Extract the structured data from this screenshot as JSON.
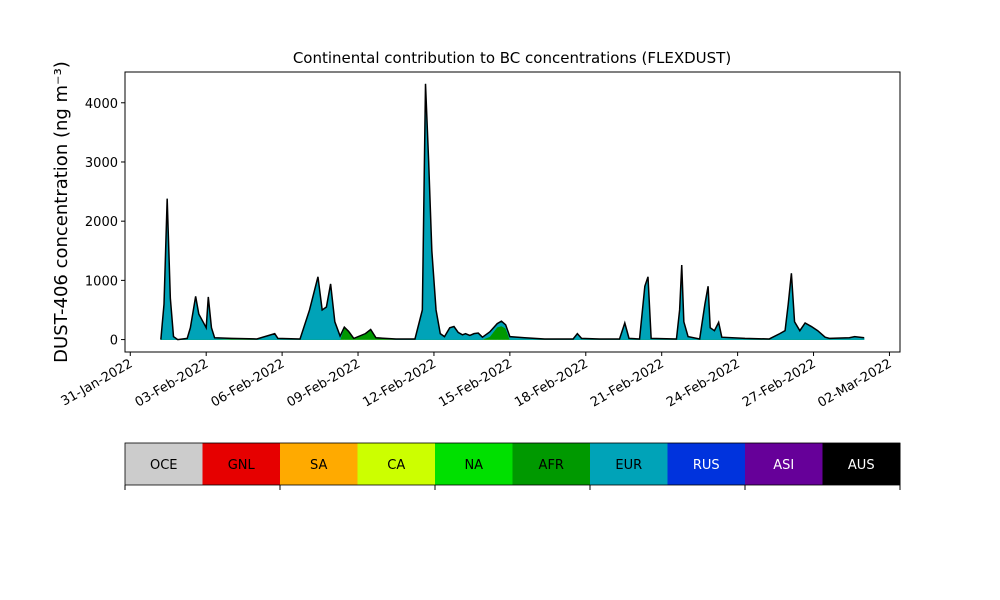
{
  "chart_data": {
    "type": "stacked_area",
    "title": "Continental contribution to BC concentrations (FLEXDUST)",
    "y_label": "DUST-406 concentration (ng m⁻³)",
    "x": [
      "2022-02-01 05:00",
      "2022-02-01 08:00",
      "2022-02-01 11:00",
      "2022-02-01 14:00",
      "2022-02-01 17:00",
      "2022-02-01 21:00",
      "2022-02-02 06:00",
      "2022-02-02 09:00",
      "2022-02-02 14:00",
      "2022-02-02 17:00",
      "2022-02-02 21:00",
      "2022-02-03 00:00",
      "2022-02-03 02:00",
      "2022-02-03 05:00",
      "2022-02-03 08:00",
      "2022-02-04 00:00",
      "2022-02-05 00:00",
      "2022-02-05 17:00",
      "2022-02-05 20:00",
      "2022-02-06 17:00",
      "2022-02-07 02:00",
      "2022-02-07 10:00",
      "2022-02-07 14:00",
      "2022-02-07 18:00",
      "2022-02-07 22:00",
      "2022-02-08 02:00",
      "2022-02-08 07:00",
      "2022-02-08 11:00",
      "2022-02-08 15:00",
      "2022-02-08 20:00",
      "2022-02-09 07:00",
      "2022-02-09 12:00",
      "2022-02-09 17:00",
      "2022-02-10 12:00",
      "2022-02-11 06:00",
      "2022-02-11 13:00",
      "2022-02-11 16:00",
      "2022-02-11 19:00",
      "2022-02-11 22:00",
      "2022-02-12 02:00",
      "2022-02-12 06:00",
      "2022-02-12 10:00",
      "2022-02-12 15:00",
      "2022-02-12 19:00",
      "2022-02-12 23:00",
      "2022-02-13 03:00",
      "2022-02-13 06:00",
      "2022-02-13 10:00",
      "2022-02-13 14:00",
      "2022-02-13 18:00",
      "2022-02-13 22:00",
      "2022-02-14 05:00",
      "2022-02-14 12:00",
      "2022-02-14 16:00",
      "2022-02-14 20:00",
      "2022-02-15 00:00",
      "2022-02-15 14:00",
      "2022-02-16 09:00",
      "2022-02-17 12:00",
      "2022-02-17 16:00",
      "2022-02-17 20:00",
      "2022-02-18 13:00",
      "2022-02-19 08:00",
      "2022-02-19 13:00",
      "2022-02-19 17:00",
      "2022-02-20 03:00",
      "2022-02-20 08:00",
      "2022-02-20 11:00",
      "2022-02-20 14:00",
      "2022-02-21 14:00",
      "2022-02-21 17:00",
      "2022-02-21 19:00",
      "2022-02-21 21:00",
      "2022-02-22 01:00",
      "2022-02-22 12:00",
      "2022-02-22 17:00",
      "2022-02-22 20:00",
      "2022-02-22 22:00",
      "2022-02-23 02:00",
      "2022-02-23 06:00",
      "2022-02-23 09:00",
      "2022-02-24 07:00",
      "2022-02-25 06:00",
      "2022-02-25 16:00",
      "2022-02-25 21:00",
      "2022-02-26 00:00",
      "2022-02-26 03:00",
      "2022-02-26 06:00",
      "2022-02-26 11:00",
      "2022-02-26 16:00",
      "2022-02-26 22:00",
      "2022-02-27 04:00",
      "2022-02-27 11:00",
      "2022-02-27 15:00",
      "2022-02-28 10:00",
      "2022-02-28 15:00",
      "2022-02-28 20:00",
      "2022-03-01 00:00"
    ],
    "series": [
      {
        "name": "AFR",
        "color": "#009900",
        "values": [
          0,
          0,
          0,
          0,
          0,
          0,
          0,
          0,
          0,
          0,
          0,
          0,
          0,
          0,
          0,
          10,
          0,
          0,
          0,
          0,
          0,
          0,
          0,
          0,
          0,
          0,
          0,
          200,
          130,
          20,
          90,
          160,
          30,
          0,
          0,
          0,
          0,
          0,
          0,
          0,
          0,
          0,
          0,
          0,
          0,
          0,
          0,
          0,
          0,
          0,
          0,
          50,
          210,
          230,
          190,
          0,
          0,
          0,
          0,
          0,
          0,
          0,
          0,
          0,
          0,
          0,
          0,
          0,
          0,
          0,
          0,
          0,
          0,
          0,
          0,
          0,
          0,
          0,
          0,
          0,
          0,
          0,
          0,
          0,
          0,
          0,
          0,
          0,
          0,
          0,
          0,
          0,
          0,
          0,
          0,
          0,
          0,
          0
        ]
      },
      {
        "name": "EUR",
        "color": "#00a3b8",
        "values": [
          0,
          600,
          2380,
          700,
          50,
          0,
          20,
          200,
          730,
          430,
          300,
          200,
          720,
          200,
          30,
          10,
          10,
          100,
          20,
          10,
          500,
          1060,
          500,
          550,
          940,
          300,
          60,
          10,
          10,
          0,
          10,
          10,
          0,
          10,
          10,
          500,
          4320,
          3000,
          1500,
          500,
          100,
          50,
          200,
          220,
          120,
          80,
          100,
          70,
          100,
          110,
          40,
          80,
          60,
          80,
          60,
          50,
          30,
          10,
          10,
          100,
          20,
          10,
          10,
          280,
          20,
          10,
          900,
          1060,
          20,
          10,
          500,
          1260,
          300,
          50,
          10,
          600,
          900,
          200,
          150,
          290,
          40,
          20,
          10,
          100,
          150,
          600,
          1120,
          300,
          150,
          280,
          220,
          150,
          40,
          20,
          30,
          50,
          40,
          30
        ]
      }
    ],
    "xlim": [
      "2022-01-30 19:00",
      "2022-03-02 10:00"
    ],
    "xticks": [
      {
        "value": "2022-01-31",
        "label": "31-Jan-2022"
      },
      {
        "value": "2022-02-03",
        "label": "03-Feb-2022"
      },
      {
        "value": "2022-02-06",
        "label": "06-Feb-2022"
      },
      {
        "value": "2022-02-09",
        "label": "09-Feb-2022"
      },
      {
        "value": "2022-02-12",
        "label": "12-Feb-2022"
      },
      {
        "value": "2022-02-15",
        "label": "15-Feb-2022"
      },
      {
        "value": "2022-02-18",
        "label": "18-Feb-2022"
      },
      {
        "value": "2022-02-21",
        "label": "21-Feb-2022"
      },
      {
        "value": "2022-02-24",
        "label": "24-Feb-2022"
      },
      {
        "value": "2022-02-27",
        "label": "27-Feb-2022"
      },
      {
        "value": "2022-03-02",
        "label": "02-Mar-2022"
      }
    ],
    "ylim": [
      -210,
      4520
    ],
    "yticks": [
      0,
      1000,
      2000,
      3000,
      4000
    ],
    "colorbar": [
      {
        "name": "OCE",
        "color": "#cccccc"
      },
      {
        "name": "GNL",
        "color": "#e60000"
      },
      {
        "name": "SA",
        "color": "#ffaa00"
      },
      {
        "name": "CA",
        "color": "#ccff00"
      },
      {
        "name": "NA",
        "color": "#00e000"
      },
      {
        "name": "AFR",
        "color": "#009900"
      },
      {
        "name": "EUR",
        "color": "#00a3b8"
      },
      {
        "name": "RUS",
        "color": "#0033dd"
      },
      {
        "name": "ASI",
        "color": "#660099"
      },
      {
        "name": "AUS",
        "color": "#000000"
      }
    ]
  }
}
